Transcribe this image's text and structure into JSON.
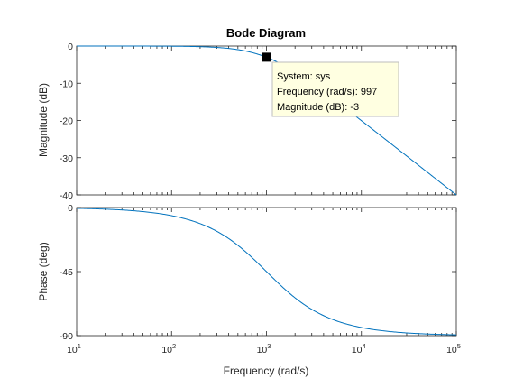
{
  "chart_data": {
    "type": "line",
    "title": "Bode Diagram",
    "xlabel": "Frequency  (rad/s)",
    "xscale": "log",
    "xlim": [
      10,
      100000
    ],
    "xticks": [
      {
        "base": "10",
        "exp": "1"
      },
      {
        "base": "10",
        "exp": "2"
      },
      {
        "base": "10",
        "exp": "3"
      },
      {
        "base": "10",
        "exp": "4"
      },
      {
        "base": "10",
        "exp": "5"
      }
    ],
    "system": {
      "type": "first-order-lowpass",
      "cutoff_rad_s": 1000
    },
    "line_color": "#0072bd",
    "grid": false,
    "panels": [
      {
        "name": "magnitude",
        "ylabel": "Magnitude (dB)",
        "ylim": [
          -40,
          0
        ],
        "yticks": [
          "0",
          "-10",
          "-20",
          "-30",
          "-40"
        ],
        "series": [
          {
            "x": [
              10,
              100,
              200,
              500,
              1000,
              2000,
              5000,
              10000,
              50000,
              100000
            ],
            "y": [
              0.0,
              -0.04,
              -0.17,
              -0.97,
              -3.01,
              -6.99,
              -14.15,
              -20.04,
              -33.98,
              -40.0
            ]
          }
        ]
      },
      {
        "name": "phase",
        "ylabel": "Phase (deg)",
        "ylim": [
          -90,
          0
        ],
        "yticks": [
          "0",
          "-45",
          "-90"
        ],
        "series": [
          {
            "x": [
              10,
              100,
              200,
              500,
              1000,
              2000,
              5000,
              10000,
              50000,
              100000
            ],
            "y": [
              -0.57,
              -5.71,
              -11.31,
              -26.57,
              -45.0,
              -63.43,
              -78.69,
              -84.29,
              -88.85,
              -89.43
            ]
          }
        ]
      }
    ],
    "datatip": {
      "x": 997,
      "y": -3,
      "lines": [
        "System: sys",
        "Frequency (rad/s): 997",
        "Magnitude (dB): -3"
      ]
    }
  }
}
